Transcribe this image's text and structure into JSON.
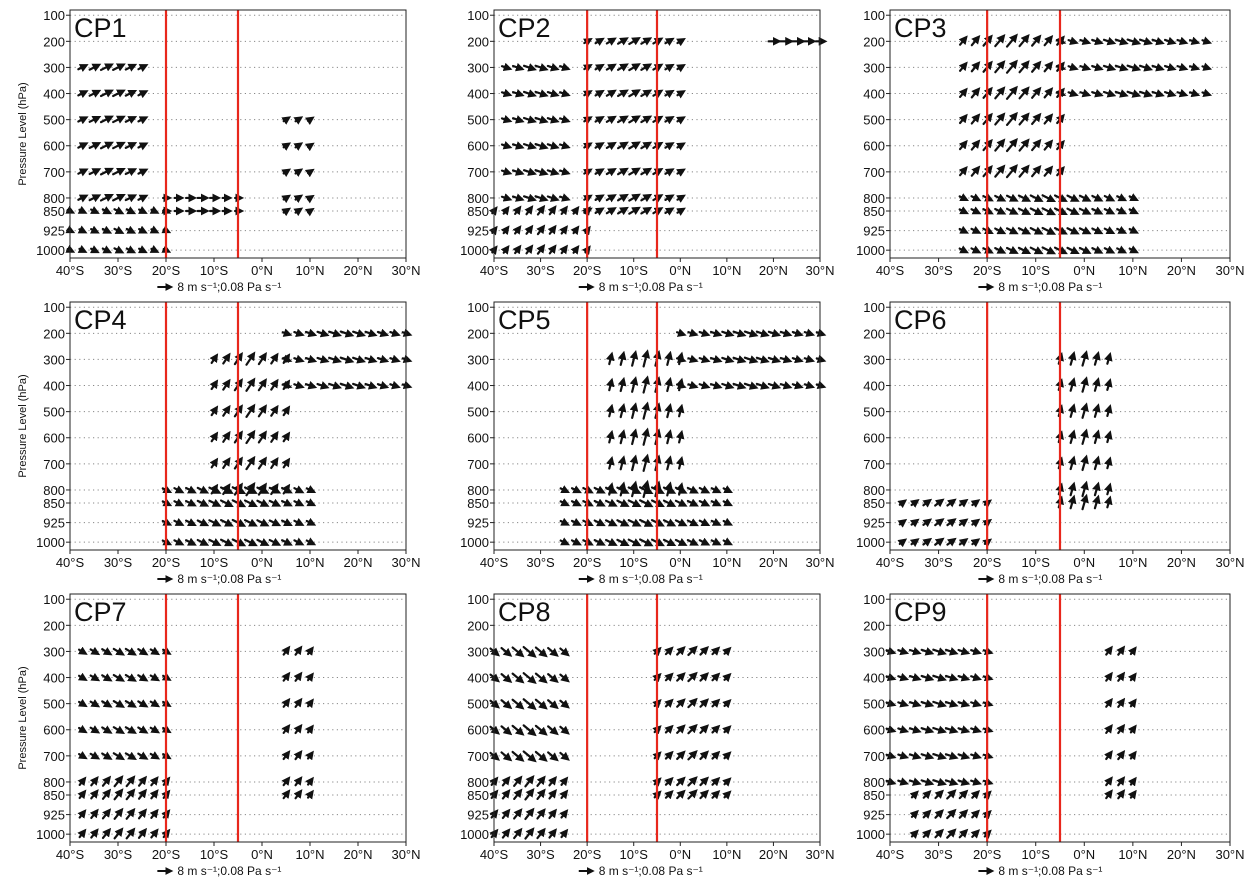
{
  "figure": {
    "ylabel": "Pressure Level (hPa)",
    "panel_labels": [
      "CP1",
      "CP2",
      "CP3",
      "CP4",
      "CP5",
      "CP6",
      "CP7",
      "CP8",
      "CP9"
    ],
    "key_label": "8 m s⁻¹;0.08 Pa s⁻¹"
  },
  "chart_data": {
    "type": "quiver",
    "panels": [
      "CP1",
      "CP2",
      "CP3",
      "CP4",
      "CP5",
      "CP6",
      "CP7",
      "CP8",
      "CP9"
    ],
    "x_ticks": [
      -40,
      -30,
      -20,
      -10,
      0,
      10,
      20,
      30
    ],
    "x_tick_labels": [
      "40°S",
      "30°S",
      "20°S",
      "10°S",
      "0°N",
      "10°N",
      "20°N",
      "30°N"
    ],
    "xlim": [
      -40,
      30
    ],
    "levels": [
      100,
      200,
      300,
      400,
      500,
      600,
      700,
      800,
      850,
      925,
      1000
    ],
    "y_tick_labels": [
      "100",
      "200",
      "300",
      "400",
      "500",
      "600",
      "700",
      "800",
      "850",
      "925",
      "1000"
    ],
    "ylim": [
      80,
      1030
    ],
    "grid": true,
    "reference_vector": {
      "horizontal": 8,
      "horizontal_unit": "m s-1",
      "vertical": 0.08,
      "vertical_unit": "Pa s-1"
    },
    "red_lines_x": [
      -20,
      -5
    ],
    "colors": {
      "red_line": "#e8271c",
      "arrow": "#111111",
      "frame": "#222222",
      "grid": "#888888"
    },
    "arrow_patterns": [
      {
        "panel": "CP1",
        "regions": [
          {
            "x": [
              -38,
              -25
            ],
            "levels": [
              300,
              400,
              500,
              600,
              700,
              800
            ],
            "u": 6,
            "w": 0.03
          },
          {
            "x": [
              -40,
              -20
            ],
            "levels": [
              850,
              925,
              1000
            ],
            "u": 4,
            "w": -0.02
          },
          {
            "x": [
              -20,
              -5
            ],
            "levels": [
              800,
              850
            ],
            "u": 5,
            "w": 0.0
          },
          {
            "x": [
              3,
              10
            ],
            "levels": [
              500,
              600,
              700,
              800,
              850
            ],
            "u": 3,
            "w": 0.02
          }
        ]
      },
      {
        "panel": "CP2",
        "regions": [
          {
            "x": [
              -38,
              -24
            ],
            "levels": [
              300,
              400,
              500,
              600,
              700,
              800
            ],
            "u": 6,
            "w": -0.02
          },
          {
            "x": [
              -20,
              0
            ],
            "levels": [
              200,
              300,
              400,
              500,
              600,
              700,
              800,
              850
            ],
            "u": 5,
            "w": 0.03
          },
          {
            "x": [
              18,
              30
            ],
            "levels": [
              200
            ],
            "u": 7,
            "w": 0.0
          },
          {
            "x": [
              -40,
              -20
            ],
            "levels": [
              850,
              925,
              1000
            ],
            "u": 3,
            "w": 0.04
          }
        ]
      },
      {
        "panel": "CP3",
        "regions": [
          {
            "x": [
              -25,
              -5
            ],
            "levels": [
              200,
              300,
              400,
              500,
              600,
              700
            ],
            "u": 5,
            "w": 0.06
          },
          {
            "x": [
              -5,
              25
            ],
            "levels": [
              200,
              300,
              400
            ],
            "u": 6,
            "w": -0.02
          },
          {
            "x": [
              -25,
              10
            ],
            "levels": [
              800,
              850,
              925,
              1000
            ],
            "u": 6,
            "w": -0.03
          }
        ]
      },
      {
        "panel": "CP4",
        "regions": [
          {
            "x": [
              -10,
              5
            ],
            "levels": [
              300,
              400,
              500,
              600,
              700,
              800
            ],
            "u": 4,
            "w": 0.06
          },
          {
            "x": [
              5,
              30
            ],
            "levels": [
              200,
              300,
              400
            ],
            "u": 6,
            "w": -0.02
          },
          {
            "x": [
              -20,
              10
            ],
            "levels": [
              800,
              850,
              925,
              1000
            ],
            "u": 6,
            "w": -0.03
          }
        ]
      },
      {
        "panel": "CP5",
        "regions": [
          {
            "x": [
              -15,
              0
            ],
            "levels": [
              300,
              400,
              500,
              600,
              700,
              800
            ],
            "u": 2,
            "w": 0.08
          },
          {
            "x": [
              0,
              30
            ],
            "levels": [
              200,
              300,
              400
            ],
            "u": 6,
            "w": -0.02
          },
          {
            "x": [
              -25,
              10
            ],
            "levels": [
              800,
              850,
              925,
              1000
            ],
            "u": 6,
            "w": -0.03
          }
        ]
      },
      {
        "panel": "CP6",
        "regions": [
          {
            "x": [
              -5,
              5
            ],
            "levels": [
              300,
              400,
              500,
              600,
              700,
              800,
              850
            ],
            "u": 2,
            "w": 0.07
          },
          {
            "x": [
              -38,
              -20
            ],
            "levels": [
              850,
              925,
              1000
            ],
            "u": 4,
            "w": 0.03
          }
        ]
      },
      {
        "panel": "CP7",
        "regions": [
          {
            "x": [
              -38,
              -20
            ],
            "levels": [
              300,
              400,
              500,
              600,
              700
            ],
            "u": 5,
            "w": -0.03
          },
          {
            "x": [
              -38,
              -20
            ],
            "levels": [
              800,
              850,
              925,
              1000
            ],
            "u": 4,
            "w": 0.05
          },
          {
            "x": [
              3,
              10
            ],
            "levels": [
              300,
              400,
              500,
              600,
              700,
              800,
              850
            ],
            "u": 3,
            "w": 0.04
          }
        ]
      },
      {
        "panel": "CP8",
        "regions": [
          {
            "x": [
              -40,
              -25
            ],
            "levels": [
              300,
              400,
              500,
              600,
              700
            ],
            "u": 6,
            "w": -0.05
          },
          {
            "x": [
              -40,
              -25
            ],
            "levels": [
              800,
              850,
              925,
              1000
            ],
            "u": 4,
            "w": 0.05
          },
          {
            "x": [
              -5,
              10
            ],
            "levels": [
              300,
              400,
              500,
              600,
              700,
              800,
              850
            ],
            "u": 4,
            "w": 0.04
          }
        ]
      },
      {
        "panel": "CP9",
        "regions": [
          {
            "x": [
              -40,
              -20
            ],
            "levels": [
              300,
              400,
              500,
              600,
              700,
              800
            ],
            "u": 6,
            "w": -0.02
          },
          {
            "x": [
              -35,
              -20
            ],
            "levels": [
              850,
              925,
              1000
            ],
            "u": 4,
            "w": 0.04
          },
          {
            "x": [
              3,
              10
            ],
            "levels": [
              300,
              400,
              500,
              600,
              700,
              800,
              850
            ],
            "u": 3,
            "w": 0.04
          }
        ]
      }
    ]
  }
}
